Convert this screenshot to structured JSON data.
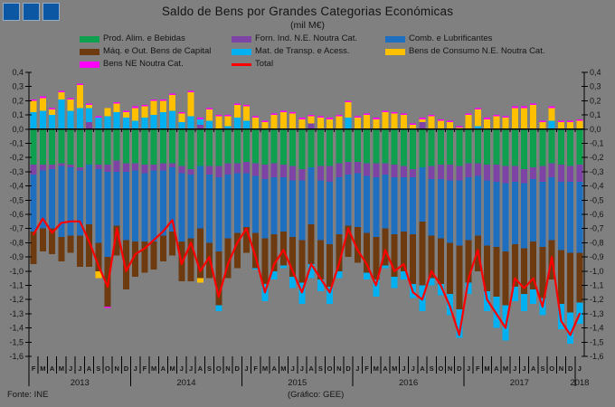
{
  "titlebar": {
    "squares": [
      "blue-square",
      "blue-square",
      "blue-square"
    ],
    "square_color": "#0B57A3"
  },
  "footer": {
    "source": "Fonte: INE",
    "credit": "(Gráfico: GEE)"
  },
  "colors": {
    "background": "#808080",
    "axis": "#000000",
    "text": "#141414"
  },
  "chart_data": {
    "type": "bar",
    "stacked": true,
    "title": "Saldo de Bens por Grandes Categorias Económicas",
    "subtitle": "(mil M€)",
    "ylabel": "",
    "xlabel": "",
    "ylim": [
      -1.6,
      0.4
    ],
    "ytick_step": 0.1,
    "decimal_separator": ",",
    "grid": false,
    "legend_position": "top",
    "categories": [
      "F",
      "M",
      "A",
      "M",
      "J",
      "J",
      "A",
      "S",
      "O",
      "N",
      "D",
      "J",
      "F",
      "M",
      "A",
      "M",
      "J",
      "J",
      "A",
      "S",
      "O",
      "N",
      "D",
      "J",
      "F",
      "M",
      "A",
      "M",
      "J",
      "J",
      "A",
      "S",
      "O",
      "N",
      "D",
      "J",
      "F",
      "M",
      "A",
      "M",
      "J",
      "J",
      "A",
      "S",
      "O",
      "N",
      "D",
      "J",
      "F",
      "M",
      "A",
      "M",
      "J",
      "J",
      "A",
      "S",
      "O",
      "N",
      "D",
      "J"
    ],
    "year_groups": [
      {
        "label": "2013",
        "count": 11
      },
      {
        "label": "2014",
        "count": 12
      },
      {
        "label": "2015",
        "count": 12
      },
      {
        "label": "2016",
        "count": 12
      },
      {
        "label": "2017",
        "count": 12
      },
      {
        "label": "2018",
        "count": 1
      }
    ],
    "series": [
      {
        "name": "Prod. Alim. e Bebidas",
        "color": "#0EA04F",
        "values": [
          -0.25,
          -0.25,
          -0.25,
          -0.24,
          -0.25,
          -0.27,
          -0.25,
          -0.25,
          -0.25,
          -0.22,
          -0.24,
          -0.24,
          -0.25,
          -0.25,
          -0.24,
          -0.24,
          -0.26,
          -0.28,
          -0.26,
          -0.26,
          -0.26,
          -0.24,
          -0.24,
          -0.23,
          -0.24,
          -0.25,
          -0.24,
          -0.25,
          -0.26,
          -0.28,
          -0.27,
          -0.26,
          -0.26,
          -0.24,
          -0.23,
          -0.23,
          -0.24,
          -0.24,
          -0.24,
          -0.25,
          -0.26,
          -0.28,
          -0.27,
          -0.26,
          -0.25,
          -0.25,
          -0.26,
          -0.24,
          -0.24,
          -0.25,
          -0.25,
          -0.26,
          -0.26,
          -0.28,
          -0.27,
          -0.26,
          -0.24,
          -0.25,
          -0.26,
          -0.25
        ]
      },
      {
        "name": "Forn. Ind. N.E. Noutra Cat.",
        "color": "#7D44A5",
        "values": [
          -0.07,
          -0.04,
          -0.03,
          -0.02,
          -0.02,
          -0.02,
          0.05,
          -0.03,
          -0.05,
          -0.08,
          -0.06,
          -0.05,
          -0.06,
          -0.04,
          -0.05,
          -0.03,
          -0.05,
          -0.04,
          0.03,
          -0.06,
          -0.08,
          -0.08,
          -0.07,
          -0.08,
          -0.09,
          -0.1,
          -0.1,
          -0.09,
          -0.1,
          -0.08,
          0.04,
          -0.1,
          -0.11,
          -0.1,
          -0.09,
          -0.08,
          -0.09,
          -0.1,
          -0.08,
          -0.09,
          -0.08,
          -0.06,
          0.05,
          -0.09,
          -0.1,
          -0.11,
          -0.1,
          -0.1,
          -0.09,
          -0.11,
          -0.12,
          -0.12,
          -0.11,
          -0.1,
          -0.08,
          -0.11,
          -0.1,
          -0.12,
          -0.11,
          -0.12
        ]
      },
      {
        "name": "Comb. e Lubrificantes",
        "color": "#1F6FC0",
        "values": [
          -0.4,
          -0.41,
          -0.42,
          -0.5,
          -0.48,
          -0.46,
          -0.42,
          -0.52,
          -0.6,
          -0.38,
          -0.48,
          -0.5,
          -0.48,
          -0.5,
          -0.46,
          -0.45,
          -0.48,
          -0.45,
          -0.44,
          -0.48,
          -0.52,
          -0.45,
          -0.42,
          -0.38,
          -0.4,
          -0.42,
          -0.4,
          -0.38,
          -0.4,
          -0.42,
          -0.4,
          -0.42,
          -0.44,
          -0.4,
          -0.36,
          -0.38,
          -0.4,
          -0.42,
          -0.38,
          -0.4,
          -0.38,
          -0.4,
          -0.38,
          -0.4,
          -0.42,
          -0.44,
          -0.46,
          -0.44,
          -0.42,
          -0.46,
          -0.46,
          -0.48,
          -0.44,
          -0.46,
          -0.44,
          -0.46,
          -0.44,
          -0.48,
          -0.5,
          -0.5
        ]
      },
      {
        "name": "Máq. e Out. Bens de Capital",
        "color": "#6E3B10",
        "values": [
          -0.23,
          -0.16,
          -0.18,
          -0.17,
          -0.12,
          -0.22,
          -0.3,
          -0.2,
          -0.35,
          -0.21,
          -0.35,
          -0.25,
          -0.22,
          -0.2,
          -0.18,
          -0.17,
          -0.28,
          -0.3,
          -0.35,
          -0.25,
          -0.38,
          -0.28,
          -0.25,
          -0.18,
          -0.25,
          -0.32,
          -0.26,
          -0.24,
          -0.28,
          -0.3,
          -0.28,
          -0.28,
          -0.3,
          -0.26,
          -0.22,
          -0.25,
          -0.28,
          -0.3,
          -0.26,
          -0.3,
          -0.28,
          -0.35,
          -0.45,
          -0.3,
          -0.32,
          -0.36,
          -0.45,
          -0.3,
          -0.25,
          -0.32,
          -0.35,
          -0.38,
          -0.3,
          -0.32,
          -0.34,
          -0.36,
          -0.28,
          -0.38,
          -0.42,
          -0.35
        ]
      },
      {
        "name": "Mat. de Transp. e Acess.",
        "color": "#00B0F0",
        "values": [
          0.12,
          0.13,
          0.1,
          0.21,
          0.13,
          0.15,
          0.1,
          0.08,
          0.09,
          0.12,
          0.08,
          0.06,
          0.08,
          0.1,
          0.12,
          0.13,
          0.05,
          0.09,
          0.04,
          0.06,
          -0.04,
          0.02,
          0.08,
          0.06,
          -0.01,
          -0.12,
          -0.06,
          -0.02,
          -0.08,
          -0.15,
          -0.1,
          -0.08,
          -0.12,
          -0.05,
          0.08,
          0.0,
          -0.05,
          -0.12,
          -0.02,
          -0.08,
          -0.06,
          -0.1,
          -0.18,
          -0.05,
          -0.08,
          -0.15,
          -0.2,
          -0.08,
          0.02,
          -0.14,
          -0.22,
          -0.25,
          -0.1,
          -0.12,
          -0.1,
          -0.12,
          0.06,
          -0.18,
          -0.22,
          -0.15
        ]
      },
      {
        "name": "Bens de Consumo N.E. Noutra Cat.",
        "color": "#FFC000",
        "values": [
          0.08,
          0.09,
          0.04,
          0.05,
          0.08,
          0.16,
          0.02,
          -0.05,
          0.06,
          0.06,
          0.04,
          0.09,
          0.08,
          0.1,
          0.08,
          0.11,
          0.06,
          0.17,
          -0.03,
          0.08,
          0.09,
          0.07,
          0.09,
          0.1,
          0.08,
          0.05,
          0.1,
          0.12,
          0.11,
          0.07,
          0.05,
          0.08,
          0.07,
          0.09,
          0.11,
          0.08,
          0.1,
          0.07,
          0.12,
          0.11,
          0.1,
          0.03,
          0.02,
          0.09,
          0.06,
          0.05,
          0.01,
          0.1,
          0.12,
          0.07,
          0.09,
          0.08,
          0.15,
          0.15,
          0.17,
          0.05,
          0.09,
          0.05,
          0.05,
          0.06
        ]
      },
      {
        "name": "Bens NE Noutra Cat.",
        "color": "#FF00FF",
        "values": [
          0.01,
          0.01,
          0.01,
          0.01,
          0.01,
          0.01,
          0.01,
          0.01,
          -0.01,
          0.01,
          0.01,
          0.01,
          0.01,
          0.01,
          0.01,
          0.01,
          0.01,
          0.01,
          0.01,
          0.01,
          0.01,
          0.01,
          0.01,
          0.01,
          0.01,
          0.01,
          0.01,
          0.01,
          0.01,
          0.01,
          0.01,
          0.01,
          0.01,
          0.01,
          0.01,
          0.01,
          0.01,
          0.01,
          0.01,
          0.01,
          0.01,
          0.01,
          0.01,
          0.01,
          0.01,
          0.01,
          0.01,
          0.01,
          0.01,
          0.01,
          0.01,
          0.01,
          0.01,
          0.01,
          0.01,
          0.01,
          0.01,
          0.01,
          0.01,
          0.01
        ]
      }
    ],
    "line_series": {
      "name": "Total",
      "color": "#FF0000",
      "values": [
        -0.74,
        -0.63,
        -0.73,
        -0.66,
        -0.65,
        -0.65,
        -0.79,
        -0.96,
        -1.11,
        -0.7,
        -1.0,
        -0.88,
        -0.84,
        -0.78,
        -0.72,
        -0.64,
        -0.95,
        -0.8,
        -1.0,
        -0.9,
        -1.18,
        -0.95,
        -0.8,
        -0.7,
        -0.9,
        -1.15,
        -0.95,
        -0.85,
        -1.0,
        -1.15,
        -0.95,
        -1.05,
        -1.15,
        -0.95,
        -0.7,
        -0.85,
        -0.95,
        -1.1,
        -0.85,
        -1.0,
        -0.95,
        -1.15,
        -1.2,
        -1.0,
        -1.1,
        -1.25,
        -1.45,
        -1.05,
        -0.85,
        -1.2,
        -1.3,
        -1.4,
        -1.05,
        -1.12,
        -1.05,
        -1.25,
        -0.9,
        -1.35,
        -1.45,
        -1.3
      ]
    }
  }
}
